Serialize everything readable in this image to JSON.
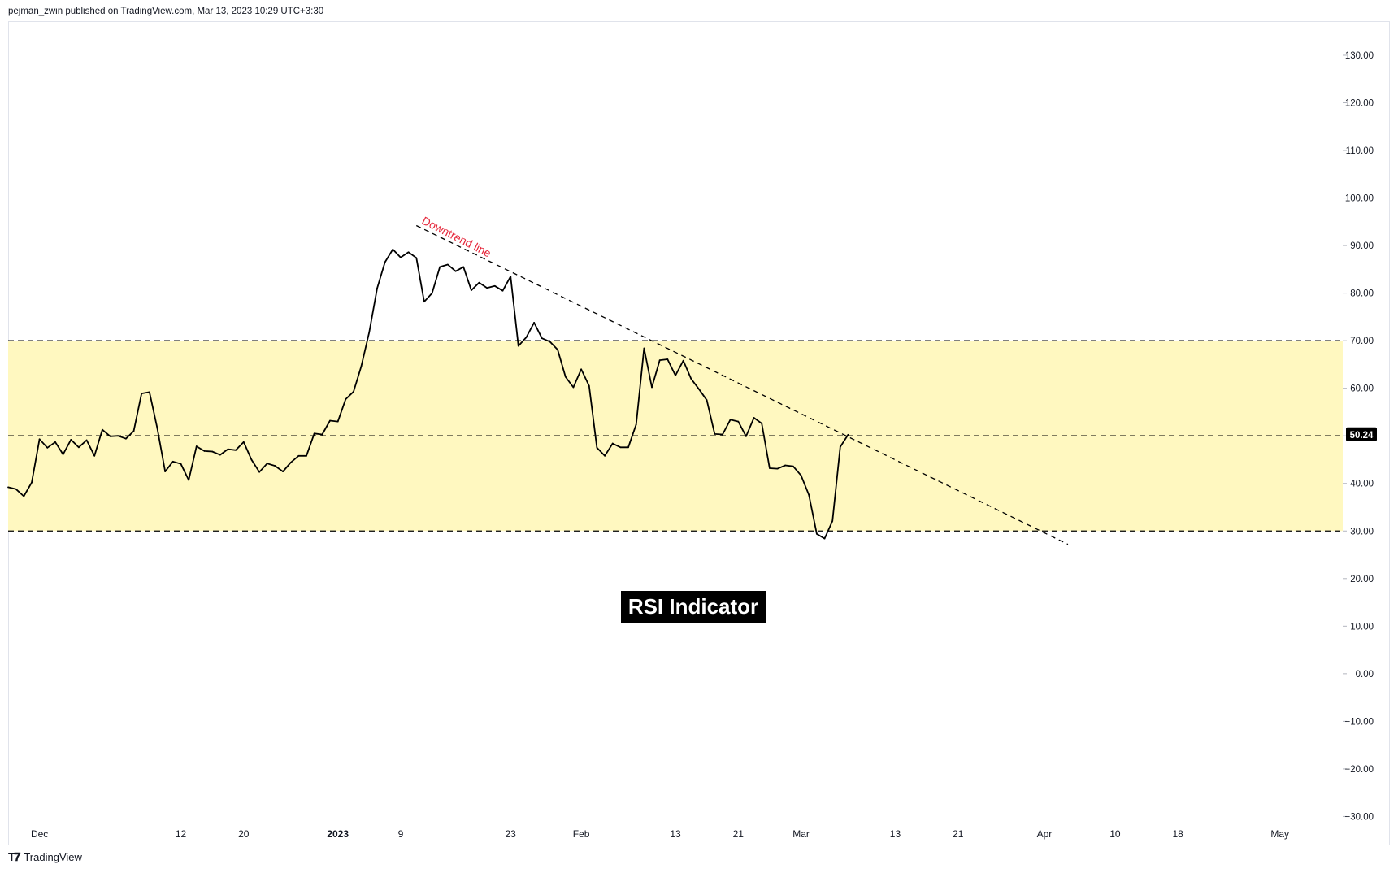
{
  "header": {
    "publisher_line": "pejman_zwin published on TradingView.com, Mar 13, 2023 10:29 UTC+3:30"
  },
  "footer": {
    "brand": "TradingView",
    "logo_icon": "tradingview-logo-icon"
  },
  "chart_data": {
    "type": "line",
    "title": "RSI Indicator",
    "annotation": "Downtrend line",
    "current_value_label": "50.24",
    "ylim": [
      -33,
      137
    ],
    "y_ticks": [
      "130.00",
      "120.00",
      "110.00",
      "100.00",
      "90.00",
      "80.00",
      "70.00",
      "60.00",
      "50.00",
      "40.00",
      "30.00",
      "20.00",
      "10.00",
      "0.00",
      "−10.00",
      "−20.00",
      "−30.00"
    ],
    "y_tick_values": [
      130,
      120,
      110,
      100,
      90,
      80,
      70,
      60,
      50,
      40,
      30,
      20,
      10,
      0,
      -10,
      -20,
      -30
    ],
    "x_ticks": [
      {
        "label": "Dec",
        "date": "2022-11-24"
      },
      {
        "label": "12",
        "date": "2022-12-12"
      },
      {
        "label": "20",
        "date": "2022-12-20"
      },
      {
        "label": "2023",
        "date": "2023-01-01",
        "bold": true
      },
      {
        "label": "9",
        "date": "2023-01-09"
      },
      {
        "label": "23",
        "date": "2023-01-23"
      },
      {
        "label": "Feb",
        "date": "2023-02-01"
      },
      {
        "label": "13",
        "date": "2023-02-13"
      },
      {
        "label": "21",
        "date": "2023-02-21"
      },
      {
        "label": "Mar",
        "date": "2023-03-01"
      },
      {
        "label": "13",
        "date": "2023-03-13"
      },
      {
        "label": "21",
        "date": "2023-03-21"
      },
      {
        "label": "Apr",
        "date": "2023-04-01"
      },
      {
        "label": "10",
        "date": "2023-04-10"
      },
      {
        "label": "18",
        "date": "2023-04-18"
      },
      {
        "label": "May",
        "date": "2023-05-01"
      }
    ],
    "zone": {
      "from": 30,
      "to": 70,
      "color": "#fff8c0"
    },
    "levels": [
      70,
      50,
      30
    ],
    "line_color": "#000000",
    "annotation_color": "#e5263a",
    "series": [
      {
        "values": [
          [
            "2022-11-20",
            39.2
          ],
          [
            "2022-11-21",
            38.8
          ],
          [
            "2022-11-22",
            37.3
          ],
          [
            "2022-11-23",
            40.2
          ],
          [
            "2022-11-24",
            49.3
          ],
          [
            "2022-11-25",
            47.5
          ],
          [
            "2022-11-26",
            48.7
          ],
          [
            "2022-11-27",
            46.1
          ],
          [
            "2022-11-28",
            49.2
          ],
          [
            "2022-11-29",
            47.6
          ],
          [
            "2022-11-30",
            49.1
          ],
          [
            "2022-12-01",
            45.8
          ],
          [
            "2022-12-02",
            51.3
          ],
          [
            "2022-12-03",
            49.9
          ],
          [
            "2022-12-04",
            50.0
          ],
          [
            "2022-12-05",
            49.4
          ],
          [
            "2022-12-06",
            51.0
          ],
          [
            "2022-12-07",
            58.9
          ],
          [
            "2022-12-08",
            59.2
          ],
          [
            "2022-12-09",
            51.6
          ],
          [
            "2022-12-10",
            42.5
          ],
          [
            "2022-12-11",
            44.6
          ],
          [
            "2022-12-12",
            44.1
          ],
          [
            "2022-12-13",
            40.7
          ],
          [
            "2022-12-14",
            47.8
          ],
          [
            "2022-12-15",
            46.8
          ],
          [
            "2022-12-16",
            46.7
          ],
          [
            "2022-12-17",
            46.0
          ],
          [
            "2022-12-18",
            47.2
          ],
          [
            "2022-12-19",
            47.0
          ],
          [
            "2022-12-20",
            48.7
          ],
          [
            "2022-12-21",
            45.0
          ],
          [
            "2022-12-22",
            42.4
          ],
          [
            "2022-12-23",
            44.2
          ],
          [
            "2022-12-24",
            43.7
          ],
          [
            "2022-12-25",
            42.5
          ],
          [
            "2022-12-26",
            44.4
          ],
          [
            "2022-12-27",
            45.8
          ],
          [
            "2022-12-28",
            45.8
          ],
          [
            "2022-12-29",
            50.5
          ],
          [
            "2022-12-30",
            50.3
          ],
          [
            "2022-12-31",
            53.2
          ],
          [
            "2023-01-01",
            53.0
          ],
          [
            "2023-01-02",
            57.7
          ],
          [
            "2023-01-03",
            59.3
          ],
          [
            "2023-01-04",
            64.7
          ],
          [
            "2023-01-05",
            71.8
          ],
          [
            "2023-01-06",
            81.0
          ],
          [
            "2023-01-07",
            86.5
          ],
          [
            "2023-01-08",
            89.2
          ],
          [
            "2023-01-09",
            87.5
          ],
          [
            "2023-01-10",
            88.6
          ],
          [
            "2023-01-11",
            87.4
          ],
          [
            "2023-01-12",
            78.2
          ],
          [
            "2023-01-13",
            80.0
          ],
          [
            "2023-01-14",
            85.5
          ],
          [
            "2023-01-15",
            86.0
          ],
          [
            "2023-01-16",
            84.6
          ],
          [
            "2023-01-17",
            85.5
          ],
          [
            "2023-01-18",
            80.6
          ],
          [
            "2023-01-19",
            82.2
          ],
          [
            "2023-01-20",
            81.1
          ],
          [
            "2023-01-21",
            81.5
          ],
          [
            "2023-01-22",
            80.5
          ],
          [
            "2023-01-23",
            83.5
          ],
          [
            "2023-01-24",
            68.9
          ],
          [
            "2023-01-25",
            70.7
          ],
          [
            "2023-01-26",
            73.8
          ],
          [
            "2023-01-27",
            70.5
          ],
          [
            "2023-01-28",
            69.8
          ],
          [
            "2023-01-29",
            68.1
          ],
          [
            "2023-01-30",
            62.4
          ],
          [
            "2023-01-31",
            60.2
          ],
          [
            "2023-02-01",
            64.0
          ],
          [
            "2023-02-02",
            60.5
          ],
          [
            "2023-02-03",
            47.5
          ],
          [
            "2023-02-04",
            45.8
          ],
          [
            "2023-02-05",
            48.4
          ],
          [
            "2023-02-06",
            47.6
          ],
          [
            "2023-02-07",
            47.6
          ],
          [
            "2023-02-08",
            52.4
          ],
          [
            "2023-02-09",
            68.4
          ],
          [
            "2023-02-10",
            60.2
          ],
          [
            "2023-02-11",
            65.9
          ],
          [
            "2023-02-12",
            66.1
          ],
          [
            "2023-02-13",
            62.7
          ],
          [
            "2023-02-14",
            65.8
          ],
          [
            "2023-02-15",
            62.0
          ],
          [
            "2023-02-16",
            59.8
          ],
          [
            "2023-02-17",
            57.5
          ],
          [
            "2023-02-18",
            50.4
          ],
          [
            "2023-02-19",
            50.3
          ],
          [
            "2023-02-20",
            53.4
          ],
          [
            "2023-02-21",
            53.0
          ],
          [
            "2023-02-22",
            49.9
          ],
          [
            "2023-02-23",
            53.8
          ],
          [
            "2023-02-24",
            52.6
          ],
          [
            "2023-02-25",
            43.2
          ],
          [
            "2023-02-26",
            43.1
          ],
          [
            "2023-02-27",
            43.8
          ],
          [
            "2023-02-28",
            43.6
          ],
          [
            "2023-03-01",
            41.7
          ],
          [
            "2023-03-02",
            37.6
          ],
          [
            "2023-03-03",
            29.4
          ],
          [
            "2023-03-04",
            28.4
          ],
          [
            "2023-03-05",
            32.1
          ],
          [
            "2023-03-06",
            47.7
          ],
          [
            "2023-03-07",
            50.24
          ]
        ]
      }
    ],
    "trendline": {
      "from": [
        "2023-01-11",
        94.2
      ],
      "to": [
        "2023-04-04",
        27.2
      ]
    }
  }
}
